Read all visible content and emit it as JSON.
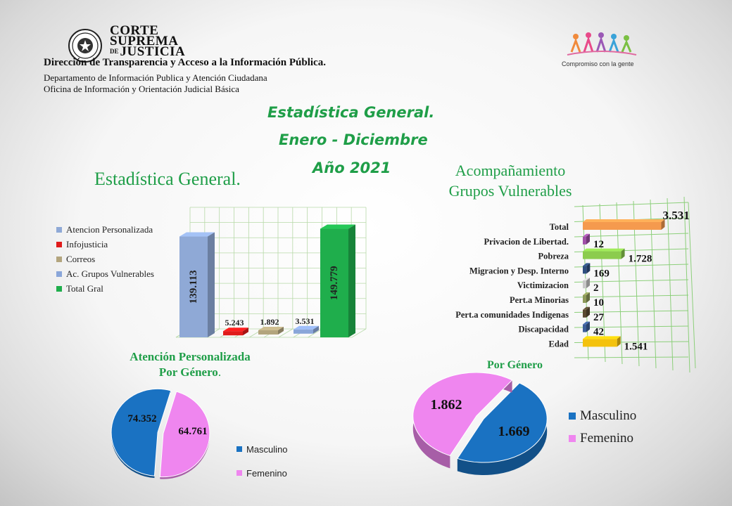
{
  "header": {
    "org_line1": "CORTE",
    "org_line2": "SUPREMA",
    "org_line3": "DE",
    "org_line4": "JUSTICIA",
    "direction": "Dirección de Transparencia y Acceso a la Información Pública.",
    "department": "Departamento  de Información  Publica  y Atención  Ciudadana",
    "office": "Oficina  de Información  y Orientación  Judicial  Básica",
    "slogan": "Compromiso con la gente"
  },
  "titles": {
    "line1": "Estadística General.",
    "line2": "Enero - Diciembre",
    "line3": "Año 2021"
  },
  "colors": {
    "green": "#1f9e48",
    "atencion": "#8fa9d6",
    "infojusticia": "#e01b1b",
    "correos": "#b3a57e",
    "vulnerables": "#8aa6d9",
    "total_gral": "#1fae4c",
    "masculino": "#1a72c2",
    "femenino": "#ef86ef"
  },
  "chart_data": [
    {
      "type": "bar",
      "title": "Estadística General.",
      "categories": [
        "Atencion Personalizada",
        "Infojusticia",
        "Correos",
        "Ac. Grupos Vulnerables",
        "Total Gral"
      ],
      "values": [
        139113,
        5243,
        1892,
        3531,
        149779
      ],
      "labels": [
        "139.113",
        "5.243",
        "1.892",
        "3.531",
        "149.779"
      ],
      "legend": [
        "Atencion Personalizada",
        "Infojusticia",
        "Correos",
        "Ac. Grupos Vulnerables",
        "Total Gral"
      ],
      "legend_position": "left",
      "grid": true,
      "ylim": [
        0,
        160000
      ]
    },
    {
      "type": "bar",
      "orientation": "horizontal",
      "title": "Acompañamiento Grupos Vulnerables",
      "title_line1": "Acompañamiento",
      "title_line2": "Grupos Vulnerables",
      "categories": [
        "Total",
        "Privacion de Libertad.",
        "Pobreza",
        "Migracion y Desp. Interno",
        "Victimizacion",
        "Pert.a Minorias",
        "Pert.a comunidades Indigenas",
        "Discapacidad",
        "Edad"
      ],
      "values": [
        3531,
        12,
        1728,
        169,
        2,
        10,
        27,
        42,
        1541
      ],
      "labels": [
        "3.531",
        "12",
        "1.728",
        "169",
        "2",
        "10",
        "27",
        "42",
        "1.541"
      ],
      "colors": [
        "#f59a4e",
        "#a050a8",
        "#8ccc4e",
        "#2e4f80",
        "#c8c8c8",
        "#8e9a5a",
        "#5a4a30",
        "#3d5f99",
        "#f4c20d"
      ],
      "grid": true,
      "xlim": [
        0,
        3800
      ]
    },
    {
      "type": "pie",
      "title": "Atención Personalizada Por Género.",
      "title_line1": "Atención Personalizada",
      "title_line2": "Por Género",
      "categories": [
        "Masculino",
        "Femenino"
      ],
      "values": [
        74352,
        64761
      ],
      "labels": [
        "74.352",
        "64.761"
      ],
      "legend": [
        "Masculino",
        "Femenino"
      ],
      "legend_position": "right"
    },
    {
      "type": "pie",
      "title": "Por Género",
      "categories": [
        "Masculino",
        "Femenino"
      ],
      "values": [
        1669,
        1862
      ],
      "labels": [
        "1.669",
        "1.862"
      ],
      "legend": [
        "Masculino",
        "Femenino"
      ],
      "legend_position": "right"
    }
  ]
}
